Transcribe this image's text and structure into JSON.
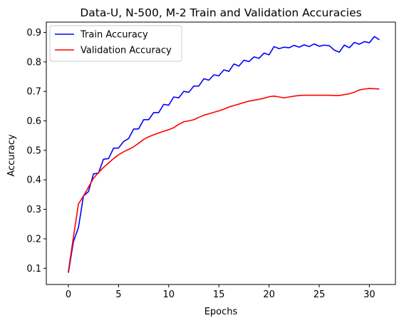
{
  "chart_data": {
    "type": "line",
    "title": "Data-U, N-500, M-2 Train and Validation Accuracies",
    "xlabel": "Epochs",
    "ylabel": "Accuracy",
    "xlim": [
      -2.2,
      32.6
    ],
    "ylim": [
      0.045,
      0.935
    ],
    "xticks": [
      0,
      5,
      10,
      15,
      20,
      25,
      30
    ],
    "yticks": [
      0.1,
      0.2,
      0.3,
      0.4,
      0.5,
      0.6,
      0.7,
      0.8,
      0.9
    ],
    "grid": false,
    "legend": "top-left",
    "x": [
      0,
      0.5,
      1,
      1.5,
      2,
      2.5,
      3,
      3.5,
      4,
      4.5,
      5,
      5.5,
      6,
      6.5,
      7,
      7.5,
      8,
      8.5,
      9,
      9.5,
      10,
      10.5,
      11,
      11.5,
      12,
      12.5,
      13,
      13.5,
      14,
      14.5,
      15,
      15.5,
      16,
      16.5,
      17,
      17.5,
      18,
      18.5,
      19,
      19.5,
      20,
      20.5,
      21,
      21.5,
      22,
      22.5,
      23,
      23.5,
      24,
      24.5,
      25,
      25.5,
      26,
      26.5,
      27,
      27.5,
      28,
      28.5,
      29,
      29.5,
      30,
      30.5,
      31
    ],
    "series": [
      {
        "name": "Train Accuracy",
        "color": "#0000ff",
        "values": [
          0.085,
          0.19,
          0.238,
          0.345,
          0.36,
          0.42,
          0.423,
          0.47,
          0.472,
          0.507,
          0.508,
          0.53,
          0.54,
          0.572,
          0.573,
          0.604,
          0.604,
          0.628,
          0.628,
          0.656,
          0.653,
          0.681,
          0.678,
          0.7,
          0.697,
          0.718,
          0.718,
          0.743,
          0.738,
          0.756,
          0.753,
          0.773,
          0.768,
          0.793,
          0.786,
          0.806,
          0.801,
          0.817,
          0.812,
          0.83,
          0.824,
          0.852,
          0.845,
          0.85,
          0.848,
          0.856,
          0.85,
          0.858,
          0.852,
          0.861,
          0.853,
          0.857,
          0.855,
          0.84,
          0.833,
          0.857,
          0.848,
          0.866,
          0.86,
          0.869,
          0.865,
          0.886,
          0.875
        ]
      },
      {
        "name": "Validation Accuracy",
        "color": "#ff0000",
        "values": [
          0.09,
          0.205,
          0.318,
          0.345,
          0.375,
          0.405,
          0.425,
          0.442,
          0.457,
          0.472,
          0.485,
          0.495,
          0.503,
          0.512,
          0.524,
          0.537,
          0.546,
          0.553,
          0.559,
          0.565,
          0.57,
          0.577,
          0.588,
          0.597,
          0.6,
          0.604,
          0.612,
          0.619,
          0.624,
          0.629,
          0.634,
          0.64,
          0.647,
          0.652,
          0.657,
          0.662,
          0.667,
          0.67,
          0.673,
          0.677,
          0.682,
          0.684,
          0.681,
          0.678,
          0.681,
          0.684,
          0.686,
          0.687,
          0.687,
          0.687,
          0.687,
          0.687,
          0.687,
          0.686,
          0.686,
          0.689,
          0.692,
          0.697,
          0.705,
          0.708,
          0.71,
          0.709,
          0.708
        ]
      }
    ]
  }
}
